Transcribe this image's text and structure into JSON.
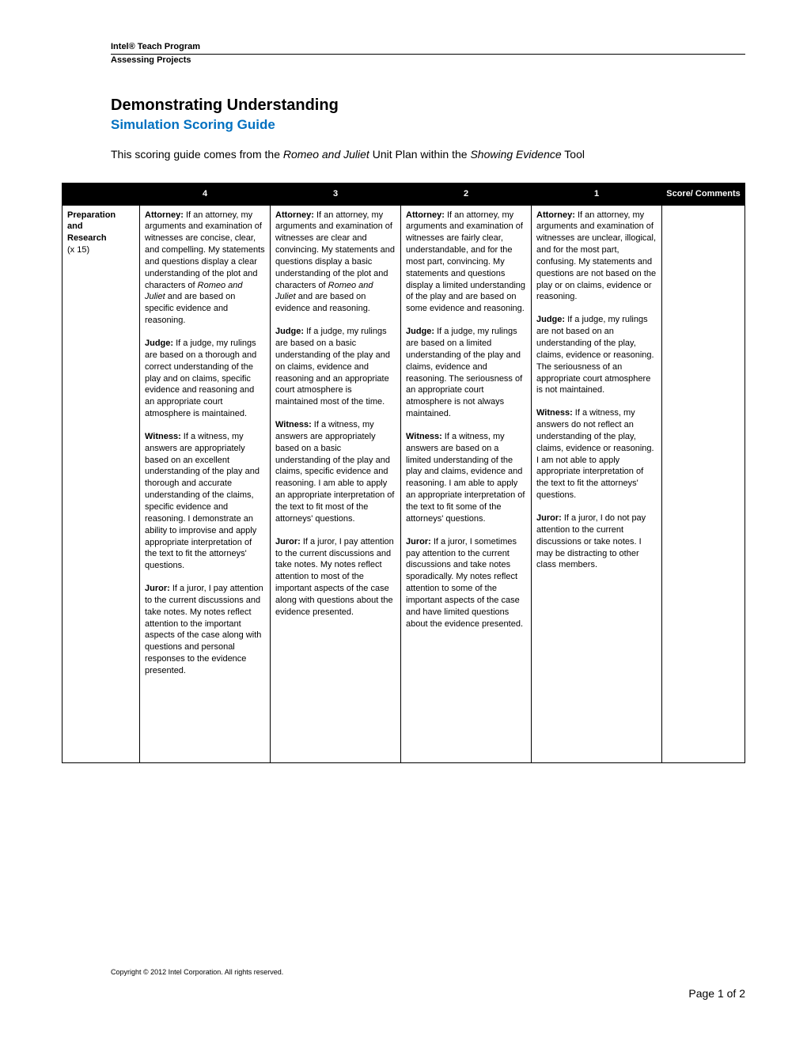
{
  "header": {
    "program": "Intel® Teach Program",
    "section": "Assessing Projects"
  },
  "title": "Demonstrating Understanding",
  "subtitle": "Simulation Scoring Guide",
  "intro_pre": "This scoring guide comes from the ",
  "intro_ital1": "Romeo and Juliet",
  "intro_mid": " Unit Plan within the ",
  "intro_ital2": "Showing Evidence",
  "intro_post": " Tool",
  "columns": {
    "blank": "",
    "c4": "4",
    "c3": "3",
    "c2": "2",
    "c1": "1",
    "score": "Score/ Comments"
  },
  "row": {
    "label_line1": "Preparation",
    "label_line2": "and",
    "label_line3": "Research",
    "weight": "(x 15)"
  },
  "c4": {
    "attorney_label": "Attorney:",
    "attorney_pre": " If an attorney, my arguments and examination of witnesses are concise, clear, and compelling. My statements and questions display a clear understanding of the plot and characters of ",
    "attorney_ital": "Romeo and Juliet",
    "attorney_post": " and are based on specific evidence and reasoning.",
    "judge_label": "Judge:",
    "judge": " If a judge, my rulings are based on a thorough and correct understanding of the play and on claims, specific evidence and reasoning and an appropriate court atmosphere is maintained.",
    "witness_label": "Witness:",
    "witness": " If a witness, my answers are appropriately based on an excellent understanding of the play and thorough and accurate understanding of the claims, specific evidence and reasoning. I demonstrate an ability to improvise and apply appropriate interpretation of the text to fit the attorneys' questions.",
    "juror_label": "Juror:",
    "juror": " If a juror, I pay attention to the current discussions and take notes. My notes reflect attention to the important aspects of the case along with questions and personal responses to the evidence presented."
  },
  "c3": {
    "attorney_label": "Attorney:",
    "attorney_pre": " If an attorney, my arguments and examination of witnesses are clear and convincing. My statements and questions display a basic understanding of the plot and characters of ",
    "attorney_ital": "Romeo and Juliet",
    "attorney_post": " and are based on evidence and reasoning.",
    "judge_label": "Judge:",
    "judge": " If a judge, my rulings are based on a basic understanding of the play and on claims, evidence and reasoning and an appropriate court atmosphere is maintained most of the time.",
    "witness_label": "Witness:",
    "witness": " If a witness, my answers are appropriately based on a basic understanding of the play and claims, specific evidence and reasoning. I am able to apply an appropriate interpretation of the text to fit most of the attorneys' questions.",
    "juror_label": "Juror:",
    "juror": " If a juror, I pay attention to the current discussions and take notes. My notes reflect attention to most of the important aspects of the case along with questions about the evidence presented."
  },
  "c2": {
    "attorney_label": "Attorney:",
    "attorney": " If an attorney, my arguments and examination of witnesses are fairly clear, understandable, and for the most part, convincing. My statements and questions display a limited understanding of the play and are based on some evidence and reasoning.",
    "judge_label": "Judge:",
    "judge": " If a judge, my rulings are based on a limited understanding of the play and claims, evidence and reasoning. The seriousness of an appropriate court atmosphere is not always maintained.",
    "witness_label": "Witness:",
    "witness": " If a witness, my answers are based on a limited understanding of the play and claims, evidence and reasoning. I am able to apply an appropriate interpretation of the text to fit some of the attorneys' questions.",
    "juror_label": "Juror:",
    "juror": " If a juror, I sometimes pay attention to the current discussions and take notes sporadically.  My notes reflect attention to some of the important aspects of the case and have limited questions about the evidence presented."
  },
  "c1": {
    "attorney_label": "Attorney:",
    "attorney": " If an attorney, my arguments and examination of witnesses are unclear, illogical, and for the most part, confusing. My statements and questions are not based on the play or on claims, evidence or reasoning.",
    "judge_label": "Judge:",
    "judge": " If a judge, my rulings are not based on an understanding of the play, claims, evidence or reasoning. The seriousness of an appropriate court atmosphere is not maintained.",
    "witness_label": "Witness:",
    "witness": " If a witness, my answers do not reflect an understanding of the play, claims, evidence or reasoning. I am not able to apply appropriate interpretation of the text to fit the attorneys' questions.",
    "juror_label": "Juror:",
    "juror": " If a juror, I do not pay attention to the current discussions or take notes. I may be distracting to other class members."
  },
  "footer": {
    "copyright": "Copyright © 2012 Intel Corporation. All rights reserved.",
    "page": "Page 1 of 2"
  }
}
